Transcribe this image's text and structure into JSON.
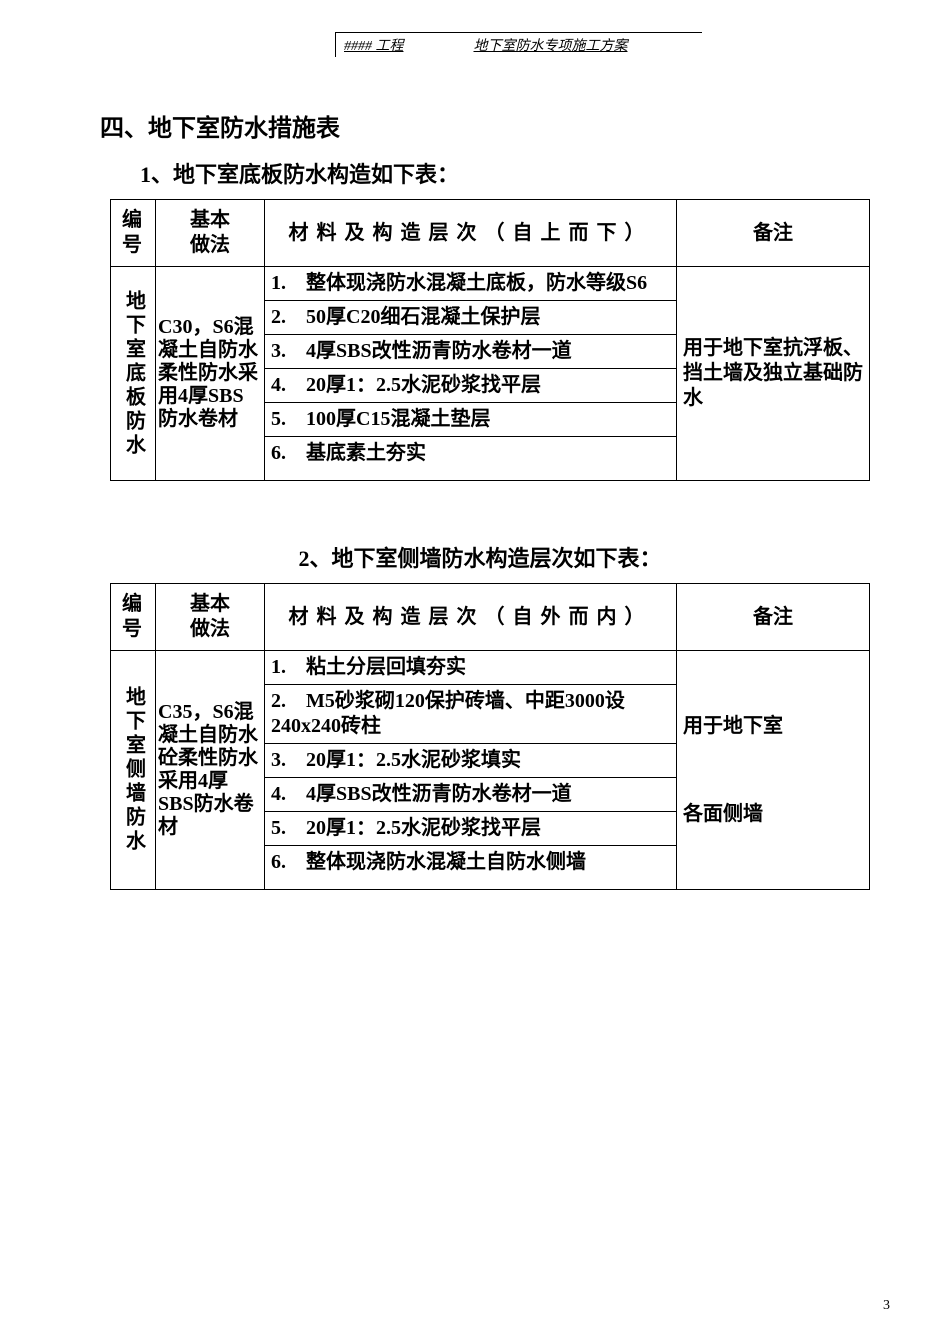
{
  "header": {
    "left": "#### 工程",
    "right": "地下室防水专项施工方案"
  },
  "section_title": "四、地下室防水措施表",
  "tables": [
    {
      "caption": "1、地下室底板防水构造如下表：",
      "header": {
        "id": "编号",
        "basic": "基本\n做法",
        "material": "材料及构造层次（自上而下）",
        "note": "备注"
      },
      "row_id": "地下室底板防水",
      "basic": "C30，S6混凝土自防水\n柔性防水采用4厚SBS防水卷材",
      "layers": [
        "1.　整体现浇防水混凝土底板，防水等级S6",
        "2.　50厚C20细石混凝土保护层",
        "3.　4厚SBS改性沥青防水卷材一道",
        "4.　20厚1：2.5水泥砂浆找平层",
        "5.　100厚C15混凝土垫层",
        "6.　基底素土夯实"
      ],
      "note": "用于地下室抗浮板、\n挡土墙及独立基础防水"
    },
    {
      "caption": "2、地下室侧墙防水构造层次如下表：",
      "header": {
        "id": "编号",
        "basic": "基本\n做法",
        "material": "材料及构造层次（自外而内）",
        "note": "备注"
      },
      "row_id": "地下室侧墙防水",
      "basic": "C35，S6混凝土自防水砼柔性防水采用4厚SBS防水卷材",
      "layers": [
        "1.　粘土分层回填夯实",
        "2.　M5砂浆砌120保护砖墙、中距3000设240x240砖柱",
        "3.　20厚1：2.5水泥砂浆填实",
        "4.　4厚SBS改性沥青防水卷材一道",
        "5.　20厚1：2.5水泥砂浆找平层",
        "6.　整体现浇防水混凝土自防水侧墙"
      ],
      "note": "用于地下室\n\n各面侧墙"
    }
  ],
  "page_number": "3",
  "colors": {
    "page_bg": "#ffffff",
    "text": "#000000",
    "border": "#000000"
  },
  "typography": {
    "body_font": "SimSun",
    "title_size_pt": 24,
    "caption_size_pt": 22,
    "cell_size_pt": 20,
    "header_bar_size_pt": 14
  }
}
